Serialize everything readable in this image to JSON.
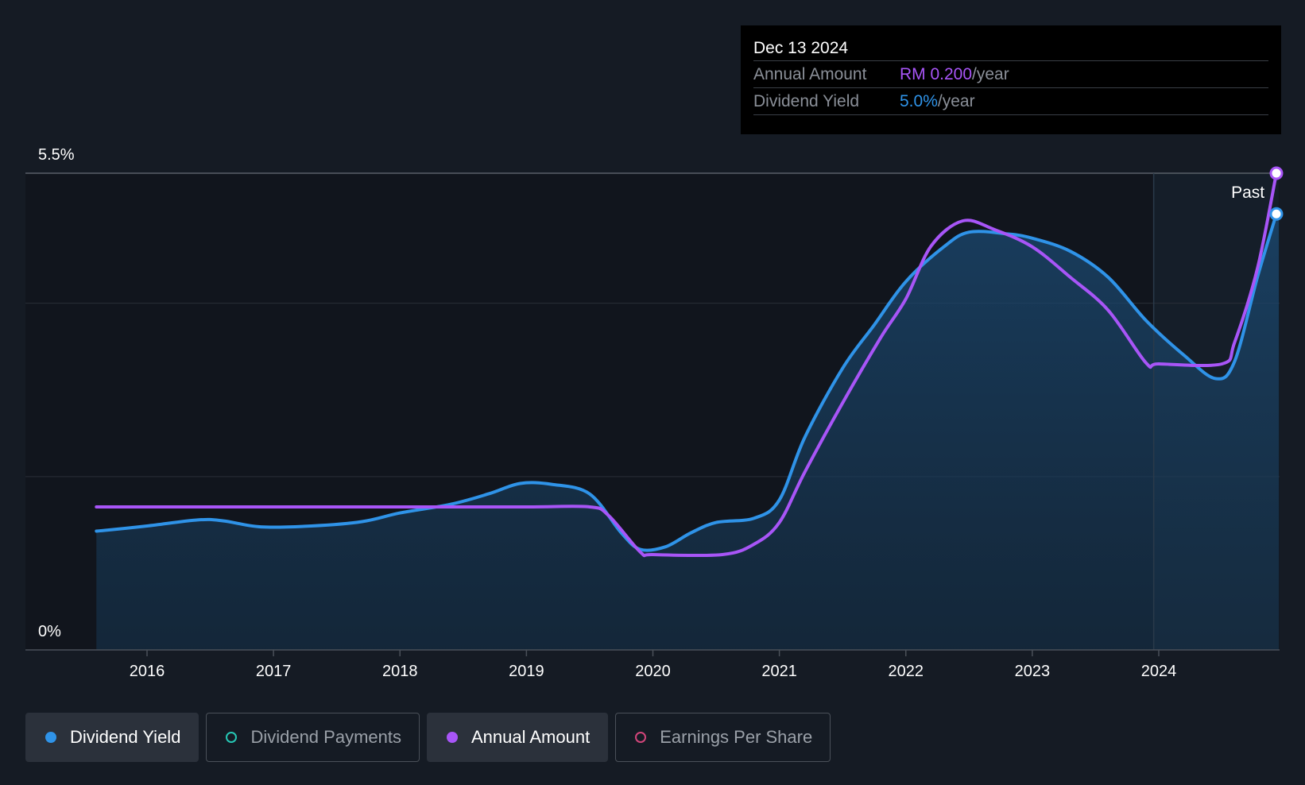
{
  "chart_data": {
    "type": "line",
    "y_axis": {
      "top_label": "5.5%",
      "bottom_label": "0%",
      "ylim": [
        0,
        5.5
      ],
      "gridlines": [
        0,
        2.0,
        4.0,
        5.5
      ]
    },
    "x_axis": {
      "ticks": [
        "2016",
        "2017",
        "2018",
        "2019",
        "2020",
        "2021",
        "2022",
        "2023",
        "2024"
      ],
      "xlim": [
        2015.6,
        2024.95
      ]
    },
    "forecast_divider": {
      "x": 2023.96,
      "label": "Past"
    },
    "series": [
      {
        "name": "Dividend Yield",
        "color": "#2f93e8",
        "area": true,
        "points": [
          [
            2015.6,
            1.37
          ],
          [
            2016.0,
            1.43
          ],
          [
            2016.4,
            1.5
          ],
          [
            2016.6,
            1.49
          ],
          [
            2016.9,
            1.42
          ],
          [
            2017.3,
            1.43
          ],
          [
            2017.7,
            1.48
          ],
          [
            2018.0,
            1.58
          ],
          [
            2018.4,
            1.68
          ],
          [
            2018.7,
            1.8
          ],
          [
            2018.95,
            1.92
          ],
          [
            2019.2,
            1.91
          ],
          [
            2019.5,
            1.8
          ],
          [
            2019.75,
            1.35
          ],
          [
            2019.9,
            1.16
          ],
          [
            2020.1,
            1.19
          ],
          [
            2020.3,
            1.35
          ],
          [
            2020.5,
            1.47
          ],
          [
            2020.8,
            1.52
          ],
          [
            2021.0,
            1.73
          ],
          [
            2021.2,
            2.45
          ],
          [
            2021.5,
            3.25
          ],
          [
            2021.75,
            3.75
          ],
          [
            2022.0,
            4.25
          ],
          [
            2022.3,
            4.65
          ],
          [
            2022.5,
            4.82
          ],
          [
            2022.8,
            4.8
          ],
          [
            2023.0,
            4.75
          ],
          [
            2023.3,
            4.6
          ],
          [
            2023.6,
            4.3
          ],
          [
            2023.9,
            3.8
          ],
          [
            2024.2,
            3.4
          ],
          [
            2024.45,
            3.13
          ],
          [
            2024.6,
            3.33
          ],
          [
            2024.78,
            4.3
          ],
          [
            2024.93,
            5.03
          ]
        ]
      },
      {
        "name": "Annual Amount",
        "color": "#a855f7",
        "area": false,
        "points": [
          [
            2015.6,
            1.65
          ],
          [
            2016.0,
            1.65
          ],
          [
            2017.0,
            1.65
          ],
          [
            2018.0,
            1.65
          ],
          [
            2019.0,
            1.65
          ],
          [
            2019.5,
            1.65
          ],
          [
            2019.65,
            1.55
          ],
          [
            2019.9,
            1.13
          ],
          [
            2020.0,
            1.1
          ],
          [
            2020.55,
            1.1
          ],
          [
            2020.8,
            1.22
          ],
          [
            2021.0,
            1.47
          ],
          [
            2021.2,
            2.05
          ],
          [
            2021.5,
            2.85
          ],
          [
            2021.8,
            3.6
          ],
          [
            2022.0,
            4.05
          ],
          [
            2022.2,
            4.66
          ],
          [
            2022.45,
            4.95
          ],
          [
            2022.7,
            4.85
          ],
          [
            2023.0,
            4.65
          ],
          [
            2023.3,
            4.3
          ],
          [
            2023.6,
            3.92
          ],
          [
            2023.9,
            3.31
          ],
          [
            2024.0,
            3.3
          ],
          [
            2024.5,
            3.3
          ],
          [
            2024.6,
            3.55
          ],
          [
            2024.78,
            4.4
          ],
          [
            2024.93,
            5.5
          ]
        ]
      }
    ],
    "tooltip": {
      "date": "Dec 13 2024",
      "rows": [
        {
          "label": "Annual Amount",
          "value": "RM 0.200",
          "unit": "/year"
        },
        {
          "label": "Dividend Yield",
          "value": "5.0%",
          "unit": "/year"
        }
      ]
    },
    "legend": [
      {
        "label": "Dividend Yield",
        "color": "#2f93e8",
        "active": true,
        "filled": true
      },
      {
        "label": "Dividend Payments",
        "color": "#26c6b4",
        "active": false,
        "filled": false
      },
      {
        "label": "Annual Amount",
        "color": "#a855f7",
        "active": true,
        "filled": true
      },
      {
        "label": "Earnings Per Share",
        "color": "#d1457a",
        "active": false,
        "filled": false
      }
    ]
  }
}
